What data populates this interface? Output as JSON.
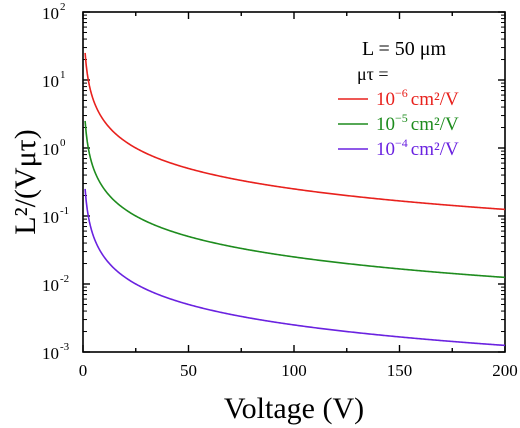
{
  "chart_data": {
    "type": "line",
    "title": "",
    "xlabel": "Voltage (V)",
    "ylabel": "L²/(Vμτ)",
    "xlim": [
      0,
      200
    ],
    "ylim": [
      0.001,
      100
    ],
    "yscale": "log",
    "grid": false,
    "legend_position": "top-right",
    "annotation": "L = 50 μm",
    "legend_title": "μτ =",
    "x_ticks": [
      "0",
      "50",
      "100",
      "150",
      "200"
    ],
    "y_ticks": [
      {
        "base": "10",
        "exp": "-3"
      },
      {
        "base": "10",
        "exp": "-2"
      },
      {
        "base": "10",
        "exp": "-1"
      },
      {
        "base": "10",
        "exp": "0"
      },
      {
        "base": "10",
        "exp": "1"
      },
      {
        "base": "10",
        "exp": "2"
      }
    ],
    "x": [
      1,
      2,
      3,
      5,
      8,
      12,
      20,
      30,
      50,
      75,
      100,
      125,
      150,
      175,
      200
    ],
    "series": [
      {
        "name": "10⁻⁶ cm²/V",
        "legend_base": "10",
        "legend_exp": "−6",
        "legend_unit": "cm²/V",
        "color": "#e8211d",
        "values": [
          25,
          12.5,
          8.33,
          5,
          3.13,
          2.08,
          1.25,
          0.833,
          0.5,
          0.333,
          0.25,
          0.2,
          0.167,
          0.143,
          0.125
        ]
      },
      {
        "name": "10⁻⁵ cm²/V",
        "legend_base": "10",
        "legend_exp": "−5",
        "legend_unit": "cm²/V",
        "color": "#1e8c1e",
        "values": [
          2.5,
          1.25,
          0.833,
          0.5,
          0.313,
          0.208,
          0.125,
          0.0833,
          0.05,
          0.0333,
          0.025,
          0.02,
          0.0167,
          0.0143,
          0.0125
        ]
      },
      {
        "name": "10⁻⁴ cm²/V",
        "legend_base": "10",
        "legend_exp": "−4",
        "legend_unit": "cm²/V",
        "color": "#6a22e0",
        "values": [
          0.25,
          0.125,
          0.0833,
          0.05,
          0.0313,
          0.0208,
          0.0125,
          0.00833,
          0.005,
          0.00333,
          0.0025,
          0.002,
          0.00167,
          0.00143,
          0.00125
        ]
      }
    ]
  }
}
